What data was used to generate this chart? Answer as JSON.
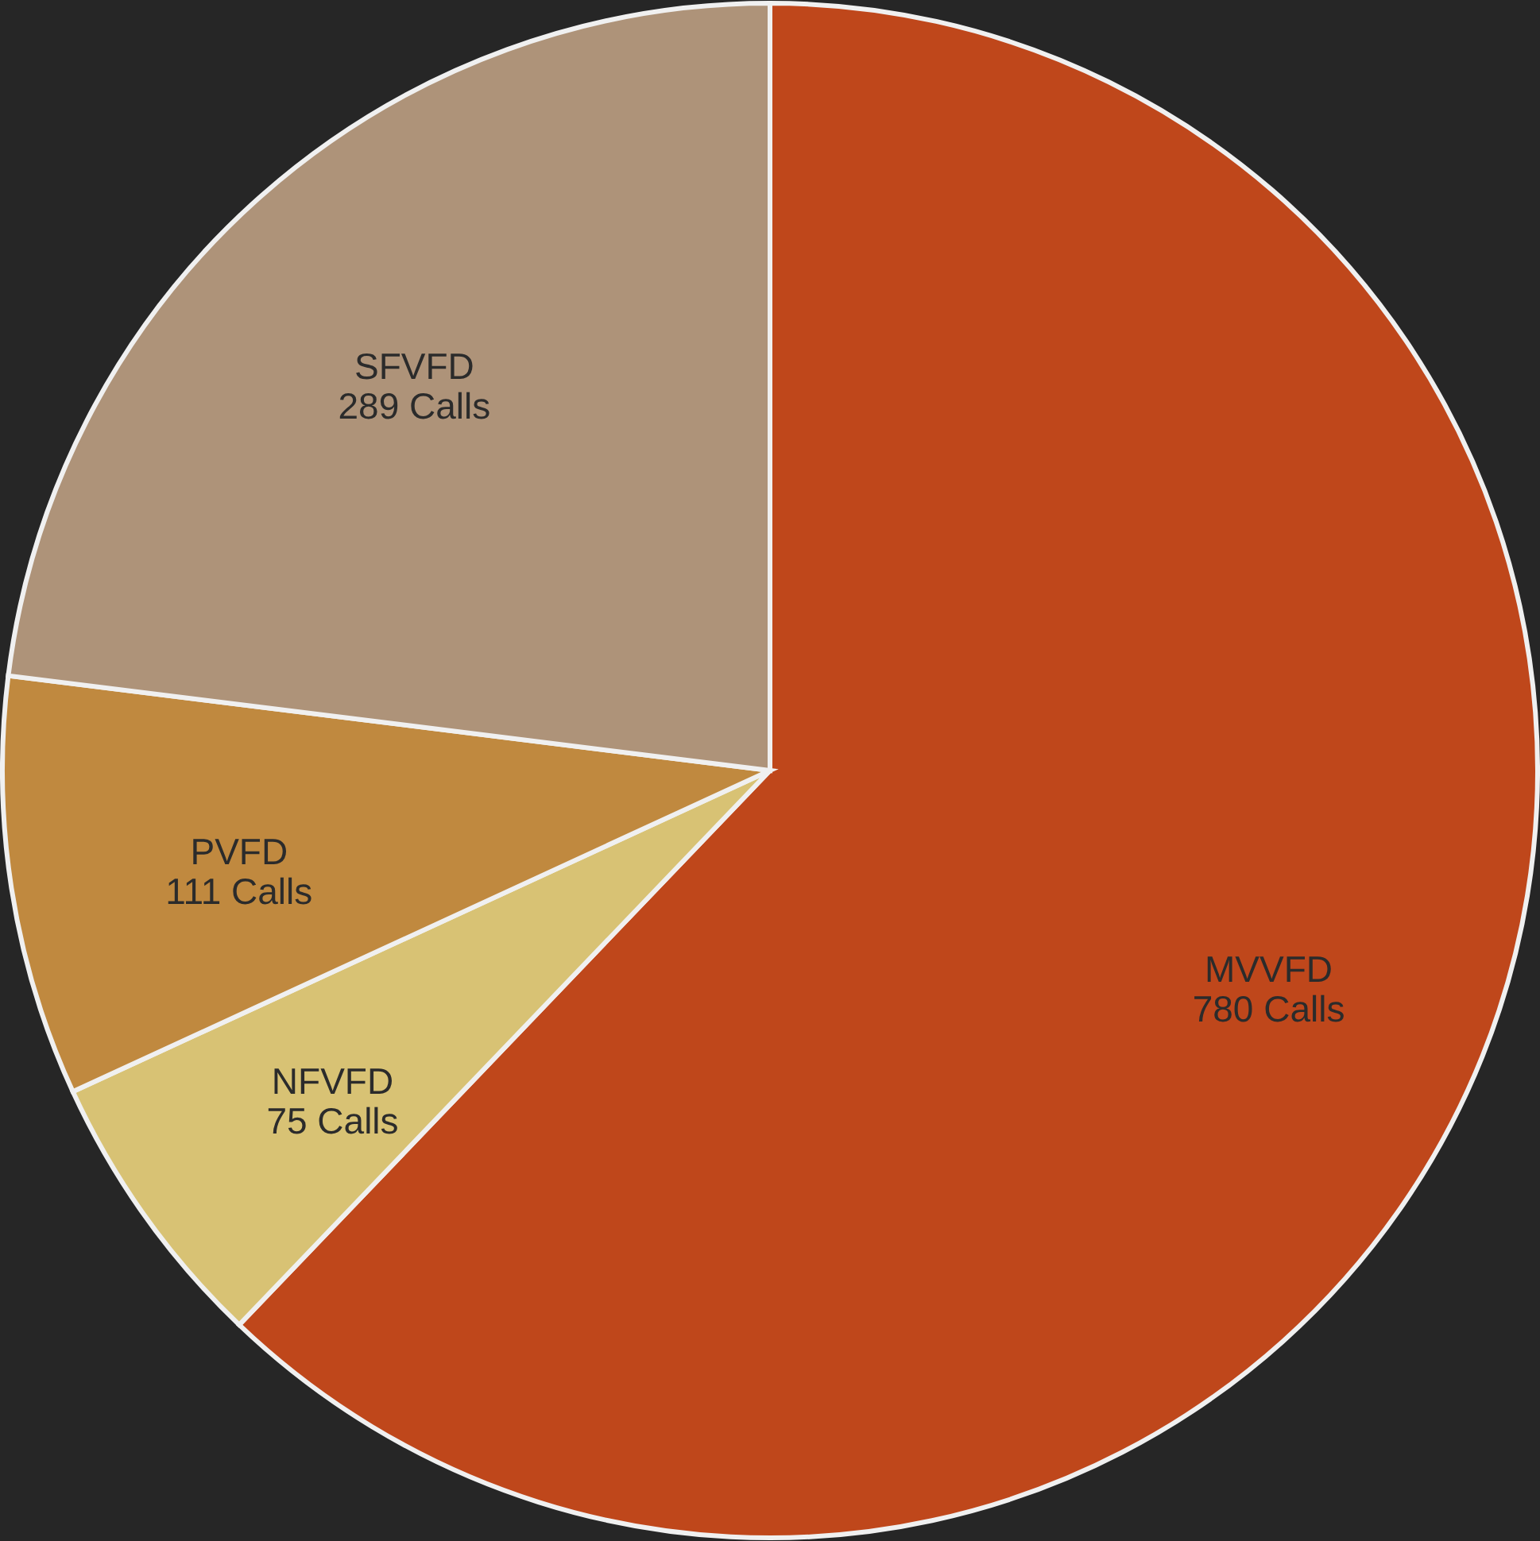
{
  "chart_data": {
    "type": "pie",
    "categories": [
      "MVVFD",
      "NFVFD",
      "PVFD",
      "SFVFD"
    ],
    "values": [
      780,
      75,
      111,
      289
    ],
    "value_labels": [
      "780 Calls",
      "75 Calls",
      "111 Calls",
      "289 Calls"
    ],
    "colors": [
      "#bf471b",
      "#d8c274",
      "#c0893f",
      "#ae9379"
    ]
  }
}
